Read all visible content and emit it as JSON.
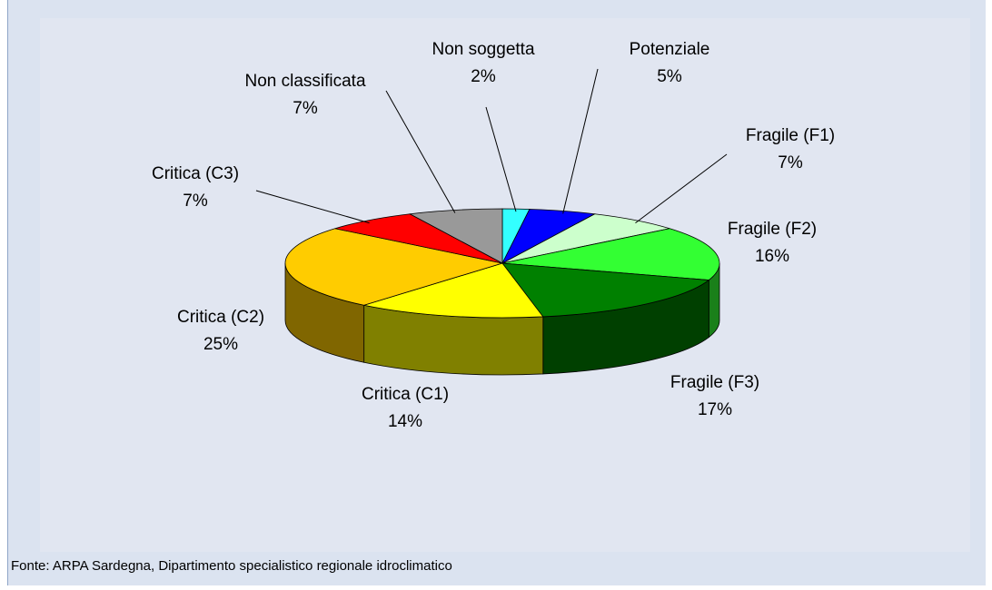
{
  "chart_data": {
    "type": "pie3d",
    "categories": [
      "Non soggetta",
      "Potenziale",
      "Fragile (F1)",
      "Fragile (F2)",
      "Fragile (F3)",
      "Critica (C1)",
      "Critica (C2)",
      "Critica (C3)",
      "Non classificata"
    ],
    "values": [
      2,
      5,
      7,
      16,
      17,
      14,
      25,
      7,
      7
    ],
    "value_labels": [
      "2%",
      "5%",
      "7%",
      "16%",
      "17%",
      "14%",
      "25%",
      "7%",
      "7%"
    ],
    "colors": [
      "#33ffff",
      "#0000ff",
      "#ccffcc",
      "#33ff33",
      "#008000",
      "#ffff00",
      "#ffcc00",
      "#ff0000",
      "#999999"
    ],
    "source": "Fonte: ARPA Sardegna, Dipartimento specialistico regionale idroclimatico"
  }
}
